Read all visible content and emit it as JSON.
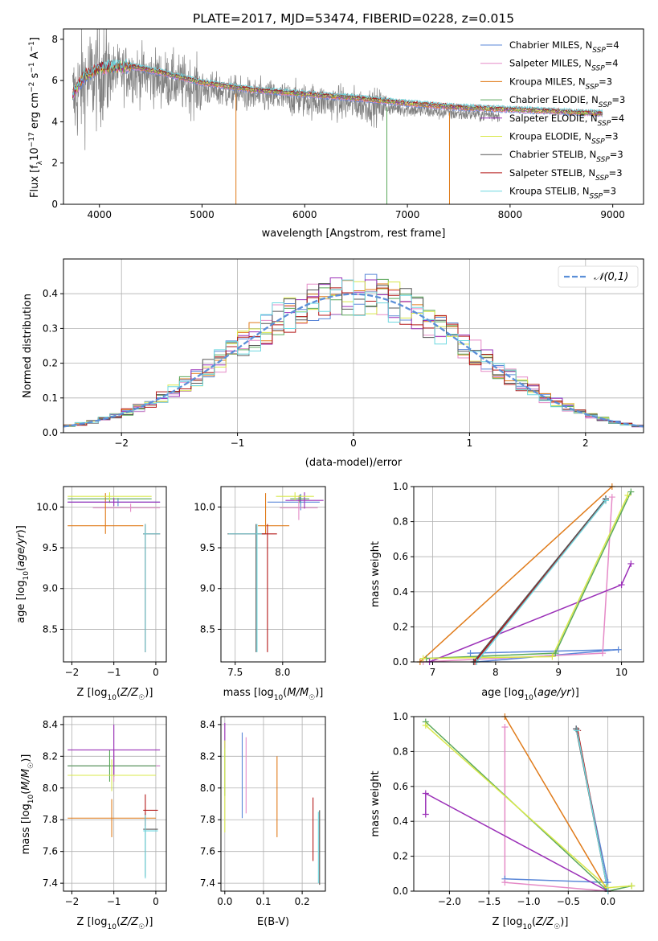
{
  "figure_title": "PLATE=2017, MJD=53474, FIBERID=0228, z=0.015",
  "colors": {
    "chabrier_miles": "#5a87d8",
    "salpeter_miles": "#e58ac7",
    "kroupa_miles": "#e07b1a",
    "chabrier_elodie": "#5aa85a",
    "salpeter_elodie": "#9b30b8",
    "kroupa_elodie": "#d8e84a",
    "chabrier_stelib": "#555555",
    "salpeter_stelib": "#b41818",
    "kroupa_stelib": "#6ed8e0",
    "data": "#808080",
    "gaussian": "#5b8fd8",
    "grid": "#b0b0b0"
  },
  "legend_items": [
    {
      "name": "Chabrier MILES",
      "nssp": "4",
      "color_key": "chabrier_miles"
    },
    {
      "name": "Salpeter MILES",
      "nssp": "4",
      "color_key": "salpeter_miles"
    },
    {
      "name": "Kroupa MILES",
      "nssp": "3",
      "color_key": "kroupa_miles"
    },
    {
      "name": "Chabrier ELODIE",
      "nssp": "3",
      "color_key": "chabrier_elodie"
    },
    {
      "name": "Salpeter ELODIE",
      "nssp": "4",
      "color_key": "salpeter_elodie"
    },
    {
      "name": "Kroupa ELODIE",
      "nssp": "3",
      "color_key": "kroupa_elodie"
    },
    {
      "name": "Chabrier STELIB",
      "nssp": "3",
      "color_key": "chabrier_stelib"
    },
    {
      "name": "Salpeter STELIB",
      "nssp": "3",
      "color_key": "salpeter_stelib"
    },
    {
      "name": "Kroupa STELIB",
      "nssp": "3",
      "color_key": "kroupa_stelib"
    }
  ],
  "chart_data": [
    {
      "id": "spectrum",
      "type": "line",
      "xlabel": "wavelength [Angstrom, rest frame]",
      "ylabel": "Flux [fλ10⁻¹⁷ erg cm⁻² s⁻¹ A⁻¹]",
      "xlim": [
        3650,
        9300
      ],
      "ylim": [
        0,
        8.5
      ],
      "xticks": [
        4000,
        5000,
        6000,
        7000,
        8000,
        9000
      ],
      "yticks": [
        0,
        2,
        4,
        6,
        8
      ],
      "data_range": [
        3740,
        7900
      ],
      "model_range": [
        3740,
        8900
      ],
      "continuum_points": [
        [
          3740,
          5.0
        ],
        [
          3850,
          5.9
        ],
        [
          4000,
          6.3
        ],
        [
          4300,
          6.4
        ],
        [
          4600,
          6.1
        ],
        [
          5000,
          5.6
        ],
        [
          5500,
          5.25
        ],
        [
          6000,
          5.05
        ],
        [
          6500,
          4.85
        ],
        [
          7000,
          4.6
        ],
        [
          7500,
          4.4
        ],
        [
          8000,
          4.3
        ],
        [
          8500,
          4.2
        ],
        [
          8900,
          4.1
        ]
      ],
      "model_dips": [
        {
          "x": 5330,
          "color_key": "kroupa_miles"
        },
        {
          "x": 6800,
          "color_key": "chabrier_elodie"
        },
        {
          "x": 7410,
          "color_key": "kroupa_miles"
        }
      ],
      "grid": false,
      "legend_placement": "upper-right"
    },
    {
      "id": "residual_histogram",
      "type": "histogram",
      "xlabel": "(data-model)/error",
      "ylabel": "Normed distribution",
      "xlim": [
        -2.5,
        2.5
      ],
      "ylim": [
        0,
        0.5
      ],
      "xticks": [
        -2,
        -1,
        0,
        1,
        2
      ],
      "yticks": [
        0.0,
        0.1,
        0.2,
        0.3,
        0.4
      ],
      "bin_width": 0.1,
      "bin_start": -2.5,
      "gaussian_label": "𝒩(0,1)",
      "gaussian_mean": 0,
      "gaussian_sigma": 1,
      "grid": true,
      "legend_placement": "upper-right"
    },
    {
      "id": "age_vs_Z",
      "type": "errorbar",
      "xlabel": "Z [log10(Z/Z☉)]",
      "ylabel": "age [log10(age/yr)]",
      "xlim": [
        -2.2,
        0.25
      ],
      "ylim": [
        8.1,
        10.25
      ],
      "xticks": [
        -2,
        -1,
        0
      ],
      "yticks": [
        8.5,
        9.0,
        9.5,
        10.0
      ],
      "grid": true,
      "points": [
        {
          "color_key": "chabrier_miles",
          "x": -0.9,
          "xerr": [
            1.2,
            1.0
          ],
          "y": 10.06,
          "yerr": [
            0.05,
            0.05
          ]
        },
        {
          "color_key": "salpeter_miles",
          "x": -0.6,
          "xerr": [
            0.9,
            0.7
          ],
          "y": 9.99,
          "yerr": [
            0.05,
            0.05
          ]
        },
        {
          "color_key": "kroupa_miles",
          "x": -1.2,
          "xerr": [
            0.9,
            0.9
          ],
          "y": 9.77,
          "yerr": [
            0.1,
            0.4
          ]
        },
        {
          "color_key": "chabrier_elodie",
          "x": -1.1,
          "xerr": [
            1.0,
            1.0
          ],
          "y": 10.1,
          "yerr": [
            0.05,
            0.05
          ]
        },
        {
          "color_key": "salpeter_elodie",
          "x": -1.0,
          "xerr": [
            1.1,
            1.1
          ],
          "y": 10.06,
          "yerr": [
            0.05,
            0.05
          ]
        },
        {
          "color_key": "kroupa_elodie",
          "x": -1.1,
          "xerr": [
            1.0,
            1.0
          ],
          "y": 10.13,
          "yerr": [
            0.05,
            0.05
          ]
        },
        {
          "color_key": "chabrier_stelib",
          "x": -0.25,
          "xerr": [
            0.05,
            0.35
          ],
          "y": 9.67,
          "yerr": [
            1.45,
            0.12
          ]
        },
        {
          "color_key": "salpeter_stelib",
          "x": -0.25,
          "xerr": [
            0.05,
            0.35
          ],
          "y": 9.67,
          "yerr": [
            1.45,
            0.12
          ]
        },
        {
          "color_key": "kroupa_stelib",
          "x": -0.25,
          "xerr": [
            0.05,
            0.35
          ],
          "y": 9.67,
          "yerr": [
            1.45,
            0.12
          ]
        }
      ]
    },
    {
      "id": "age_vs_mass",
      "type": "errorbar",
      "xlabel": "mass [log10(M/M☉)]",
      "ylabel": "",
      "xlim": [
        7.35,
        8.45
      ],
      "ylim": [
        8.1,
        10.25
      ],
      "xticks": [
        7.5,
        8.0
      ],
      "yticks": [
        8.5,
        9.0,
        9.5,
        10.0
      ],
      "grid": true,
      "points": [
        {
          "color_key": "chabrier_miles",
          "x": 8.19,
          "xerr": [
            0.35,
            0.2
          ],
          "y": 10.06,
          "yerr": [
            0.1,
            0.1
          ]
        },
        {
          "color_key": "salpeter_miles",
          "x": 8.17,
          "xerr": [
            0.2,
            0.2
          ],
          "y": 9.99,
          "yerr": [
            0.15,
            0.15
          ]
        },
        {
          "color_key": "kroupa_miles",
          "x": 7.82,
          "xerr": [
            0.08,
            0.25
          ],
          "y": 9.77,
          "yerr": [
            0.1,
            0.4
          ]
        },
        {
          "color_key": "chabrier_elodie",
          "x": 8.18,
          "xerr": [
            0.1,
            0.1
          ],
          "y": 10.1,
          "yerr": [
            0.05,
            0.05
          ]
        },
        {
          "color_key": "salpeter_elodie",
          "x": 8.23,
          "xerr": [
            0.2,
            0.2
          ],
          "y": 10.08,
          "yerr": [
            0.1,
            0.1
          ]
        },
        {
          "color_key": "kroupa_elodie",
          "x": 8.13,
          "xerr": [
            0.2,
            0.2
          ],
          "y": 10.13,
          "yerr": [
            0.05,
            0.05
          ]
        },
        {
          "color_key": "chabrier_stelib",
          "x": 7.72,
          "xerr": [
            0.3,
            0.1
          ],
          "y": 9.67,
          "yerr": [
            1.45,
            0.12
          ]
        },
        {
          "color_key": "salpeter_stelib",
          "x": 7.84,
          "xerr": [
            0.4,
            0.1
          ],
          "y": 9.67,
          "yerr": [
            1.45,
            0.12
          ]
        },
        {
          "color_key": "kroupa_stelib",
          "x": 7.73,
          "xerr": [
            0.3,
            0.05
          ],
          "y": 9.67,
          "yerr": [
            1.45,
            0.12
          ]
        }
      ]
    },
    {
      "id": "weight_vs_age",
      "type": "line",
      "xlabel": "age [log10(age/yr)]",
      "ylabel": "mass weight",
      "xlim": [
        6.7,
        10.35
      ],
      "ylim": [
        0,
        1.0
      ],
      "xticks": [
        7,
        8,
        9,
        10
      ],
      "yticks": [
        0.0,
        0.2,
        0.4,
        0.6,
        0.8,
        1.0
      ],
      "grid": true,
      "series": [
        {
          "color_key": "chabrier_miles",
          "x": [
            7.6,
            9.95,
            7.7,
            9.75
          ],
          "y": [
            0.05,
            0.07,
            0.0,
            0.93
          ]
        },
        {
          "color_key": "salpeter_miles",
          "x": [
            6.85,
            9.7,
            9.85
          ],
          "y": [
            0.0,
            0.05,
            0.94
          ]
        },
        {
          "color_key": "kroupa_miles",
          "x": [
            6.8,
            9.85
          ],
          "y": [
            0.0,
            1.0
          ]
        },
        {
          "color_key": "chabrier_elodie",
          "x": [
            6.9,
            8.95,
            10.15
          ],
          "y": [
            0.02,
            0.05,
            0.97
          ]
        },
        {
          "color_key": "salpeter_elodie",
          "x": [
            6.95,
            10.0,
            10.15
          ],
          "y": [
            0.0,
            0.44,
            0.56
          ]
        },
        {
          "color_key": "kroupa_elodie",
          "x": [
            6.85,
            8.9,
            10.1
          ],
          "y": [
            0.02,
            0.03,
            0.95
          ]
        },
        {
          "color_key": "chabrier_stelib",
          "x": [
            7.65,
            9.75
          ],
          "y": [
            0.0,
            0.93
          ]
        },
        {
          "color_key": "salpeter_stelib",
          "x": [
            7.67,
            9.75
          ],
          "y": [
            0.0,
            0.92
          ]
        },
        {
          "color_key": "kroupa_stelib",
          "x": [
            7.7,
            9.75
          ],
          "y": [
            0.0,
            0.92
          ]
        }
      ]
    },
    {
      "id": "mass_vs_Z",
      "type": "errorbar",
      "xlabel": "Z [log10(Z/Z☉)]",
      "ylabel": "mass [log10(M/M☉)]",
      "xlim": [
        -2.2,
        0.25
      ],
      "ylim": [
        7.35,
        8.45
      ],
      "xticks": [
        -2,
        -1,
        0
      ],
      "yticks": [
        7.4,
        7.6,
        7.8,
        8.0,
        8.2,
        8.4
      ],
      "grid": true,
      "points": [
        {
          "color_key": "chabrier_miles",
          "x": -1.0,
          "xerr": [
            1.1,
            1.1
          ],
          "y": 8.14,
          "yerr": [
            0.07,
            0.07
          ]
        },
        {
          "color_key": "salpeter_miles",
          "x": -1.0,
          "xerr": [
            1.1,
            1.1
          ],
          "y": 8.14,
          "yerr": [
            0.1,
            0.1
          ]
        },
        {
          "color_key": "kroupa_miles",
          "x": -1.05,
          "xerr": [
            1.05,
            1.05
          ],
          "y": 7.81,
          "yerr": [
            0.12,
            0.12
          ]
        },
        {
          "color_key": "chabrier_elodie",
          "x": -1.1,
          "xerr": [
            1.0,
            1.1
          ],
          "y": 8.14,
          "yerr": [
            0.1,
            0.1
          ]
        },
        {
          "color_key": "salpeter_elodie",
          "x": -1.0,
          "xerr": [
            1.1,
            1.1
          ],
          "y": 8.24,
          "yerr": [
            0.16,
            0.16
          ]
        },
        {
          "color_key": "kroupa_elodie",
          "x": -1.05,
          "xerr": [
            1.05,
            1.05
          ],
          "y": 8.08,
          "yerr": [
            0.1,
            0.1
          ]
        },
        {
          "color_key": "chabrier_stelib",
          "x": -0.25,
          "xerr": [
            0.05,
            0.3
          ],
          "y": 7.74,
          "yerr": [
            0.3,
            0.1
          ]
        },
        {
          "color_key": "salpeter_stelib",
          "x": -0.25,
          "xerr": [
            0.05,
            0.3
          ],
          "y": 7.86,
          "yerr": [
            0.1,
            0.1
          ]
        },
        {
          "color_key": "kroupa_stelib",
          "x": -0.25,
          "xerr": [
            0.05,
            0.3
          ],
          "y": 7.73,
          "yerr": [
            0.3,
            0.1
          ]
        }
      ]
    },
    {
      "id": "mass_vs_ebv",
      "type": "errorbar",
      "xlabel": "E(B-V)",
      "ylabel": "",
      "xlim": [
        -0.01,
        0.26
      ],
      "ylim": [
        7.35,
        8.45
      ],
      "xticks": [
        0.0,
        0.1,
        0.2
      ],
      "yticks": [
        7.4,
        7.6,
        7.8,
        8.0,
        8.2,
        8.4
      ],
      "grid": true,
      "points": [
        {
          "color_key": "chabrier_miles",
          "x": 0.045,
          "y": 8.08,
          "yerr": [
            0.27,
            0.27
          ]
        },
        {
          "color_key": "salpeter_miles",
          "x": 0.055,
          "y": 8.08,
          "yerr": [
            0.24,
            0.24
          ]
        },
        {
          "color_key": "kroupa_miles",
          "x": 0.135,
          "y": 7.95,
          "yerr": [
            0.26,
            0.25
          ]
        },
        {
          "color_key": "chabrier_elodie",
          "x": 0.0,
          "y": 8.1,
          "yerr": [
            0.15,
            0.15
          ]
        },
        {
          "color_key": "salpeter_elodie",
          "x": 0.0,
          "y": 8.35,
          "yerr": [
            0.1,
            0.06
          ]
        },
        {
          "color_key": "kroupa_elodie",
          "x": 0.0,
          "y": 8.0,
          "yerr": [
            0.28,
            0.3
          ]
        },
        {
          "color_key": "chabrier_stelib",
          "x": 0.245,
          "y": 7.62,
          "yerr": [
            0.23,
            0.24
          ]
        },
        {
          "color_key": "salpeter_stelib",
          "x": 0.228,
          "y": 7.74,
          "yerr": [
            0.2,
            0.2
          ]
        },
        {
          "color_key": "kroupa_stelib",
          "x": 0.242,
          "y": 7.6,
          "yerr": [
            0.2,
            0.25
          ]
        }
      ]
    },
    {
      "id": "weight_vs_Z",
      "type": "line",
      "xlabel": "Z [log10(Z/Z☉)]",
      "ylabel": "mass weight",
      "xlim": [
        -2.45,
        0.45
      ],
      "ylim": [
        0,
        1.0
      ],
      "xticks": [
        -2.0,
        -1.5,
        -1.0,
        -0.5,
        0.0
      ],
      "yticks": [
        0.0,
        0.2,
        0.4,
        0.6,
        0.8,
        1.0
      ],
      "grid": true,
      "series": [
        {
          "color_key": "chabrier_miles",
          "x": [
            -1.3,
            0.0,
            -0.4
          ],
          "y": [
            0.07,
            0.05,
            0.93
          ]
        },
        {
          "color_key": "salpeter_miles",
          "x": [
            -1.3,
            -1.3,
            0.0
          ],
          "y": [
            0.94,
            0.05,
            0.0
          ]
        },
        {
          "color_key": "kroupa_miles",
          "x": [
            -1.3,
            0.0
          ],
          "y": [
            1.0,
            0.0
          ]
        },
        {
          "color_key": "chabrier_elodie",
          "x": [
            -2.3,
            0.0,
            0.3
          ],
          "y": [
            0.97,
            0.0,
            0.03
          ]
        },
        {
          "color_key": "salpeter_elodie",
          "x": [
            -2.3,
            -2.3,
            0.0
          ],
          "y": [
            0.44,
            0.56,
            0.0
          ]
        },
        {
          "color_key": "kroupa_elodie",
          "x": [
            -2.3,
            0.0,
            0.3
          ],
          "y": [
            0.95,
            0.02,
            0.03
          ]
        },
        {
          "color_key": "chabrier_stelib",
          "x": [
            -0.4,
            0.0
          ],
          "y": [
            0.93,
            0.0
          ]
        },
        {
          "color_key": "salpeter_stelib",
          "x": [
            -0.38,
            0.0
          ],
          "y": [
            0.92,
            0.0
          ]
        },
        {
          "color_key": "kroupa_stelib",
          "x": [
            -0.39,
            0.0
          ],
          "y": [
            0.92,
            0.0
          ]
        }
      ]
    }
  ]
}
